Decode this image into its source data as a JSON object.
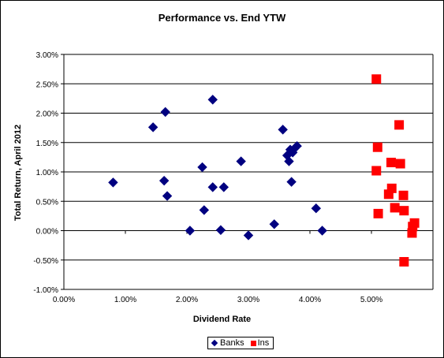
{
  "chart_data": {
    "type": "scatter",
    "title": "Performance vs. End YTW",
    "xlabel": "Dividend Rate",
    "ylabel": "Total Return, April 2012",
    "xlim": [
      0.0,
      6.0
    ],
    "ylim": [
      -1.0,
      3.0
    ],
    "x_ticks": [
      "0.00%",
      "1.00%",
      "2.00%",
      "3.00%",
      "4.00%",
      "5.00%"
    ],
    "y_ticks": [
      "-1.00%",
      "-0.50%",
      "0.00%",
      "0.50%",
      "1.00%",
      "1.50%",
      "2.00%",
      "2.50%",
      "3.00%"
    ],
    "grid": "horizontal",
    "legend_position": "bottom",
    "series": [
      {
        "name": "Banks",
        "marker": "diamond",
        "color": "#000080",
        "points": [
          [
            0.8,
            0.82
          ],
          [
            1.45,
            1.76
          ],
          [
            1.65,
            2.02
          ],
          [
            1.63,
            0.85
          ],
          [
            1.68,
            0.59
          ],
          [
            2.05,
            0.0
          ],
          [
            2.25,
            1.08
          ],
          [
            2.28,
            0.35
          ],
          [
            2.42,
            2.23
          ],
          [
            2.42,
            0.74
          ],
          [
            2.55,
            0.01
          ],
          [
            2.6,
            0.74
          ],
          [
            2.88,
            1.18
          ],
          [
            3.0,
            -0.08
          ],
          [
            3.42,
            0.11
          ],
          [
            3.56,
            1.72
          ],
          [
            3.63,
            1.28
          ],
          [
            3.66,
            1.18
          ],
          [
            3.68,
            1.38
          ],
          [
            3.7,
            0.83
          ],
          [
            3.72,
            1.33
          ],
          [
            3.75,
            1.4
          ],
          [
            3.79,
            1.44
          ],
          [
            4.1,
            0.38
          ],
          [
            4.2,
            0.0
          ]
        ]
      },
      {
        "name": "Ins",
        "marker": "square",
        "color": "#ff0000",
        "points": [
          [
            5.08,
            2.58
          ],
          [
            5.1,
            1.42
          ],
          [
            5.08,
            1.02
          ],
          [
            5.11,
            0.29
          ],
          [
            5.28,
            0.62
          ],
          [
            5.33,
            0.72
          ],
          [
            5.32,
            1.16
          ],
          [
            5.38,
            0.39
          ],
          [
            5.45,
            1.8
          ],
          [
            5.47,
            1.14
          ],
          [
            5.52,
            0.6
          ],
          [
            5.53,
            0.34
          ],
          [
            5.53,
            -0.53
          ],
          [
            5.66,
            -0.04
          ],
          [
            5.67,
            0.07
          ],
          [
            5.7,
            0.13
          ]
        ]
      }
    ]
  },
  "legend": {
    "banks_label": "Banks",
    "ins_label": "Ins"
  }
}
